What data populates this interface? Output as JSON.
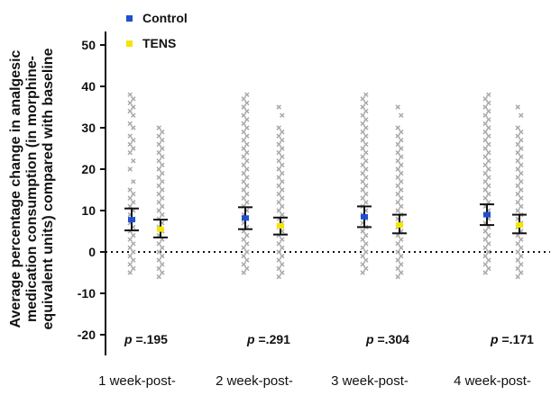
{
  "chart_data": {
    "type": "scatter",
    "title": "",
    "ylabel_lines": [
      "Average percentage change in analgesic",
      "medication consumption (in morphine-",
      "equivalent units) compared with baseline"
    ],
    "xlabel": "",
    "ylim": [
      -25,
      55
    ],
    "yticks": [
      50,
      40,
      30,
      20,
      10,
      0,
      -10,
      -20
    ],
    "ytick_labels": [
      "50",
      "40",
      "30",
      "20",
      "10",
      "0",
      "-10",
      "-20"
    ],
    "reference_line": {
      "y": 0,
      "style": "dotted"
    },
    "categories": [
      "1 week-post-",
      "2 week-post-",
      "3 week-post-",
      "4 week-post-"
    ],
    "legend": {
      "position": "top-left",
      "entries": [
        {
          "name": "Control",
          "color": "#1f4fd1"
        },
        {
          "name": "TENS",
          "color": "#f4e600"
        }
      ]
    },
    "point_color": "#a9a9a9",
    "series": [
      {
        "name": "Control",
        "color": "#1f4fd1",
        "mean": [
          7.8,
          8.2,
          8.5,
          9.0
        ],
        "ci_low": [
          5.2,
          5.5,
          6.0,
          6.5
        ],
        "ci_high": [
          10.5,
          10.8,
          11.0,
          11.5
        ],
        "points": [
          [
            -5,
            -4,
            -3,
            -2,
            -1,
            0,
            1,
            2,
            3,
            4,
            5,
            6,
            7,
            8,
            9,
            10,
            11,
            12,
            13,
            14,
            15,
            17,
            20,
            22,
            24,
            25,
            26,
            27,
            28,
            30,
            31,
            33,
            34,
            35,
            36,
            37,
            38
          ],
          [
            -5,
            -4,
            -3,
            -2,
            -1,
            0,
            1,
            2,
            3,
            4,
            5,
            6,
            7,
            8,
            9,
            10,
            11,
            12,
            13,
            14,
            15,
            16,
            17,
            18,
            19,
            20,
            21,
            22,
            23,
            24,
            25,
            26,
            27,
            28,
            29,
            30,
            31,
            32,
            33,
            34,
            35,
            36,
            37,
            38
          ],
          [
            -5,
            -4,
            -3,
            -2,
            -1,
            0,
            1,
            2,
            3,
            4,
            5,
            6,
            7,
            8,
            9,
            10,
            11,
            12,
            13,
            14,
            15,
            16,
            17,
            18,
            19,
            20,
            21,
            22,
            23,
            24,
            25,
            26,
            27,
            28,
            29,
            30,
            31,
            32,
            33,
            34,
            35,
            36,
            37,
            38
          ],
          [
            -5,
            -4,
            -3,
            -2,
            -1,
            0,
            1,
            2,
            3,
            4,
            5,
            6,
            7,
            8,
            9,
            10,
            11,
            12,
            13,
            14,
            15,
            16,
            17,
            18,
            19,
            20,
            21,
            22,
            23,
            24,
            25,
            26,
            27,
            28,
            29,
            30,
            31,
            32,
            33,
            34,
            35,
            36,
            37,
            38
          ]
        ]
      },
      {
        "name": "TENS",
        "color": "#f4e600",
        "mean": [
          5.5,
          6.3,
          6.5,
          6.5
        ],
        "ci_low": [
          3.5,
          4.2,
          4.5,
          4.5
        ],
        "ci_high": [
          7.8,
          8.3,
          9.0,
          9.0
        ],
        "points": [
          [
            -6,
            -5,
            -4,
            -3,
            -2,
            -1,
            0,
            1,
            2,
            3,
            4,
            5,
            6,
            7,
            8,
            9,
            10,
            11,
            12,
            13,
            14,
            15,
            16,
            17,
            18,
            19,
            20,
            21,
            22,
            23,
            24,
            25,
            26,
            27,
            28,
            29,
            30
          ],
          [
            -6,
            -5,
            -4,
            -3,
            -2,
            -1,
            0,
            1,
            2,
            3,
            4,
            5,
            6,
            7,
            8,
            9,
            10,
            11,
            12,
            13,
            14,
            15,
            16,
            17,
            18,
            19,
            20,
            21,
            22,
            23,
            24,
            25,
            26,
            27,
            28,
            29,
            30,
            33,
            35
          ],
          [
            -6,
            -5,
            -4,
            -3,
            -2,
            -1,
            0,
            1,
            2,
            3,
            4,
            5,
            6,
            7,
            8,
            9,
            10,
            11,
            12,
            13,
            14,
            15,
            16,
            17,
            18,
            19,
            20,
            21,
            22,
            23,
            24,
            25,
            26,
            27,
            28,
            29,
            30,
            33,
            35
          ],
          [
            -6,
            -5,
            -4,
            -3,
            -2,
            -1,
            0,
            1,
            2,
            3,
            4,
            5,
            6,
            7,
            8,
            9,
            10,
            11,
            12,
            13,
            14,
            15,
            16,
            17,
            18,
            19,
            20,
            21,
            22,
            23,
            24,
            25,
            26,
            27,
            28,
            29,
            30,
            33,
            35
          ]
        ]
      }
    ],
    "annotations": [
      {
        "p_label": "p",
        "text": " =.195"
      },
      {
        "p_label": "p",
        "text": " =.291"
      },
      {
        "p_label": "p",
        "text": " =.304"
      },
      {
        "p_label": "p",
        "text": " =.171"
      }
    ],
    "grid": false
  }
}
